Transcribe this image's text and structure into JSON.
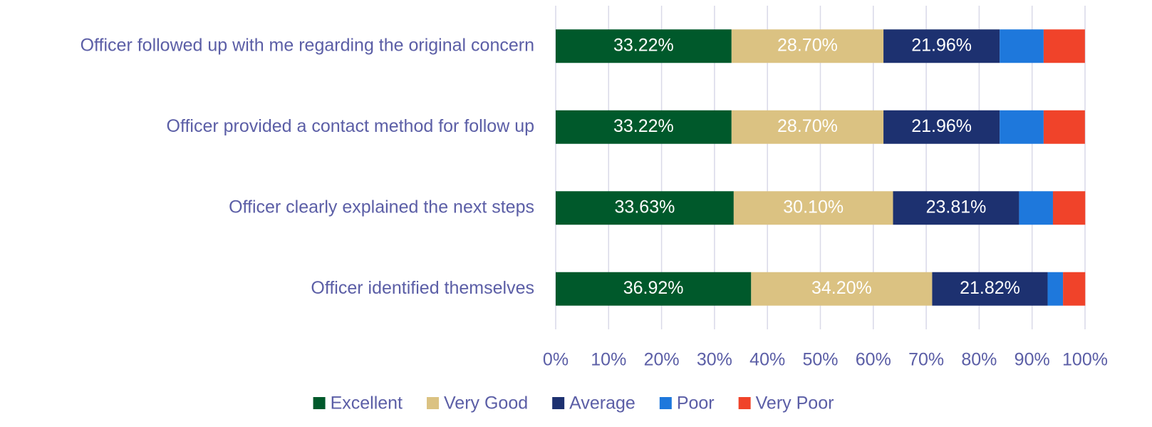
{
  "chart_data": {
    "type": "stacked_barh",
    "categories": [
      "Officer followed up with me regarding the original concern",
      "Officer provided a contact method for follow up",
      "Officer clearly explained the next steps",
      "Officer identified themselves"
    ],
    "series": [
      {
        "name": "Excellent",
        "color": "#00592b",
        "values": [
          33.22,
          33.22,
          33.63,
          36.92
        ],
        "value_labels": [
          "33.22%",
          "33.22%",
          "33.63%",
          "36.92%"
        ]
      },
      {
        "name": "Very Good",
        "color": "#dbc282",
        "values": [
          28.7,
          28.7,
          30.1,
          34.2
        ],
        "value_labels": [
          "28.70%",
          "28.70%",
          "30.10%",
          "34.20%"
        ]
      },
      {
        "name": "Average",
        "color": "#1d3170",
        "values": [
          21.96,
          21.96,
          23.81,
          21.82
        ],
        "value_labels": [
          "21.96%",
          "21.96%",
          "23.81%",
          "21.82%"
        ]
      },
      {
        "name": "Poor",
        "color": "#1e78dc",
        "values": [
          8.3,
          8.3,
          6.4,
          2.9
        ]
      },
      {
        "name": "Very Poor",
        "color": "#f0432a",
        "values": [
          7.8,
          7.8,
          6.1,
          4.2
        ]
      }
    ],
    "xlim": [
      0,
      100
    ],
    "xticks": [
      {
        "value": 0,
        "label": "0%"
      },
      {
        "value": 10,
        "label": "10%"
      },
      {
        "value": 20,
        "label": "20%"
      },
      {
        "value": 30,
        "label": "30%"
      },
      {
        "value": 40,
        "label": "40%"
      },
      {
        "value": 50,
        "label": "50%"
      },
      {
        "value": 60,
        "label": "60%"
      },
      {
        "value": 70,
        "label": "70%"
      },
      {
        "value": 80,
        "label": "80%"
      },
      {
        "value": 90,
        "label": "90%"
      },
      {
        "value": 100,
        "label": "100%"
      }
    ],
    "grid": true,
    "legend": "bottom"
  }
}
